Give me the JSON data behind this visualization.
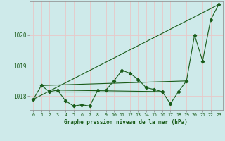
{
  "bg_color": "#ceeaea",
  "grid_color": "#e8c8c8",
  "line_color": "#1a5c1a",
  "title": "Graphe pression niveau de la mer (hPa)",
  "ylabel_ticks": [
    1018,
    1019,
    1020
  ],
  "xlim": [
    -0.5,
    23.5
  ],
  "ylim": [
    1017.55,
    1021.1
  ],
  "hours": [
    0,
    1,
    2,
    3,
    4,
    5,
    6,
    7,
    8,
    9,
    10,
    11,
    12,
    13,
    14,
    15,
    16,
    17,
    18,
    19,
    20,
    21,
    22,
    23
  ],
  "series1": [
    1017.9,
    1018.35,
    1018.15,
    1018.2,
    1017.85,
    1017.68,
    1017.72,
    1017.68,
    1018.2,
    1018.2,
    1018.5,
    1018.85,
    1018.75,
    1018.55,
    1018.28,
    1018.22,
    1018.15,
    1017.75,
    1018.15,
    1018.5,
    1020.0,
    1019.15,
    1020.5,
    1021.0
  ],
  "line2_x": [
    1,
    19
  ],
  "line2_y": [
    1018.35,
    1018.5
  ],
  "line3_x": [
    2,
    16
  ],
  "line3_y": [
    1018.15,
    1018.15
  ],
  "line4_x": [
    0,
    23
  ],
  "line4_y": [
    1017.9,
    1021.0
  ],
  "line5_x": [
    3,
    16
  ],
  "line5_y": [
    1018.2,
    1018.15
  ]
}
